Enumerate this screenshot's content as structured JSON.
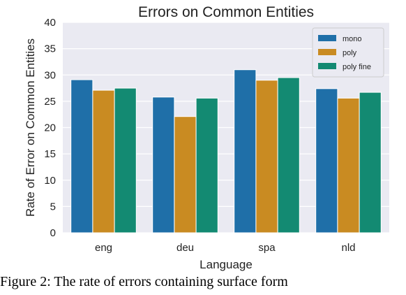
{
  "chart_data": {
    "type": "bar",
    "title": "Errors on Common Entities",
    "xlabel": "Language",
    "ylabel": "Rate of Error on Common Entities",
    "categories": [
      "eng",
      "deu",
      "spa",
      "nld"
    ],
    "ylim": [
      0,
      40
    ],
    "yticks": [
      0,
      5,
      10,
      15,
      20,
      25,
      30,
      35,
      40
    ],
    "grid": true,
    "legend_position": "top-right",
    "series": [
      {
        "name": "mono",
        "color": "#1f6fa8",
        "values": [
          29.1,
          25.8,
          31.0,
          27.4
        ]
      },
      {
        "name": "poly",
        "color": "#c98b22",
        "values": [
          27.1,
          22.1,
          29.0,
          25.6
        ]
      },
      {
        "name": "poly fine",
        "color": "#138a72",
        "values": [
          27.5,
          25.6,
          29.5,
          26.7
        ]
      }
    ]
  },
  "caption": "Figure 2:  The rate of errors containing surface form"
}
